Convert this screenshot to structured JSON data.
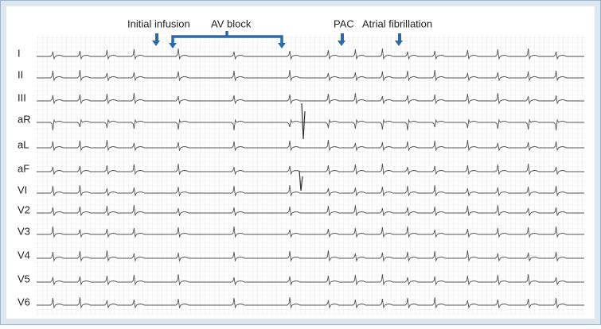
{
  "annotations": [
    "Initial infusion",
    "AV block",
    "PAC",
    "Atrial fibrillation"
  ],
  "leads": [
    "I",
    "II",
    "III",
    "aR",
    "aL",
    "aF",
    "VI",
    "V2",
    "V3",
    "V4",
    "V5",
    "V6"
  ]
}
